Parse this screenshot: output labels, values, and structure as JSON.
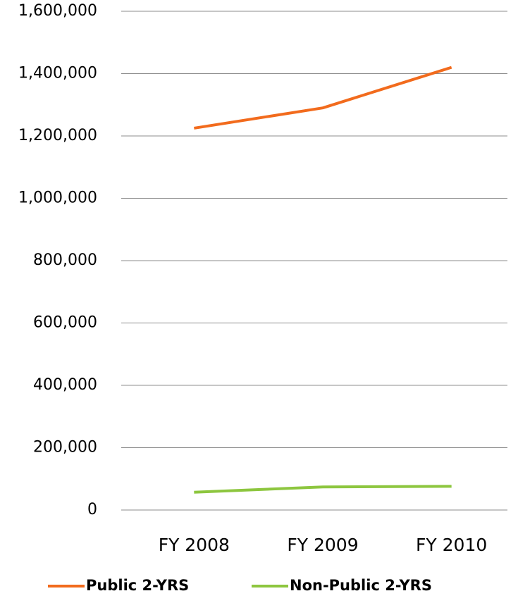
{
  "chart_data": {
    "type": "line",
    "categories": [
      "FY 2008",
      "FY 2009",
      "FY 2010"
    ],
    "series": [
      {
        "name": "Public 2-YRS",
        "color": "#f26b1d",
        "values": [
          1225000,
          1290000,
          1420000
        ]
      },
      {
        "name": "Non-Public 2-YRS",
        "color": "#8dc63f",
        "values": [
          57000,
          74000,
          76000
        ]
      }
    ],
    "ylim": [
      0,
      1600000
    ],
    "yticks": [
      0,
      {
        "value": 200000,
        "label": "200,000"
      },
      {
        "value": 400000,
        "label": "400,000"
      },
      {
        "value": 600000,
        "label": "600,000"
      },
      {
        "value": 800000,
        "label": "800,000"
      },
      {
        "value": 1000000,
        "label": "1,000,000"
      },
      {
        "value": 1200000,
        "label": "1,200,000"
      },
      {
        "value": 1400000,
        "label": "1,400,000"
      },
      {
        "value": 1600000,
        "label": "1,600,000"
      }
    ],
    "grid": true,
    "legend": "bottom"
  }
}
